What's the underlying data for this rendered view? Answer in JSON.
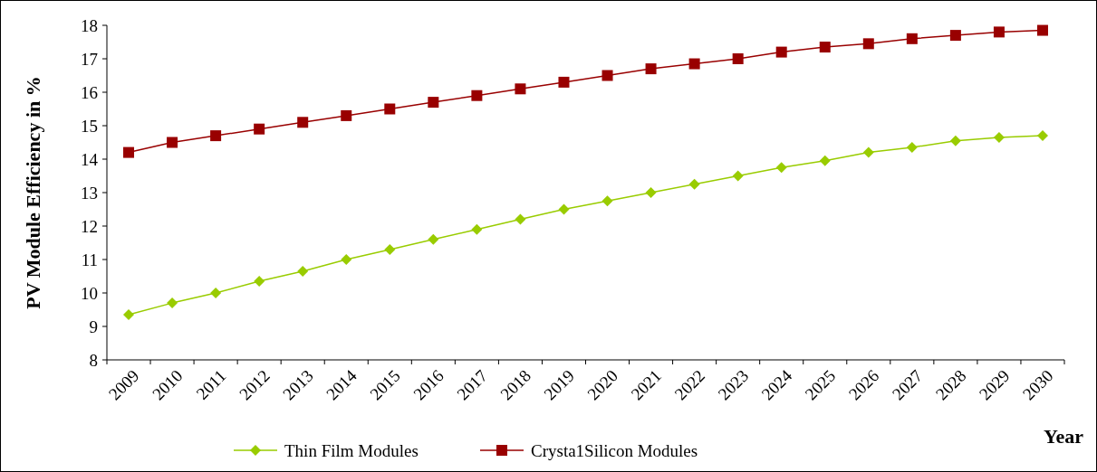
{
  "chart_data": {
    "type": "line",
    "xlabel": "Year",
    "ylabel": "PV Module Efficiency in %",
    "categories": [
      "2009",
      "2010",
      "2011",
      "2012",
      "2013",
      "2014",
      "2015",
      "2016",
      "2017",
      "2018",
      "2019",
      "2020",
      "2021",
      "2022",
      "2023",
      "2024",
      "2025",
      "2026",
      "2027",
      "2028",
      "2029",
      "2030"
    ],
    "series": [
      {
        "name": "Thin Film Modules",
        "color": "#99cc00",
        "marker": "diamond",
        "values": [
          9.35,
          9.7,
          10.0,
          10.35,
          10.65,
          11.0,
          11.3,
          11.6,
          11.9,
          12.2,
          12.5,
          12.75,
          13.0,
          13.25,
          13.5,
          13.75,
          13.95,
          14.2,
          14.35,
          14.55,
          14.65,
          14.7
        ]
      },
      {
        "name": "Crysta1Silicon Modules",
        "color": "#990000",
        "marker": "square",
        "values": [
          14.2,
          14.5,
          14.7,
          14.9,
          15.1,
          15.3,
          15.5,
          15.7,
          15.9,
          16.1,
          16.3,
          16.5,
          16.7,
          16.85,
          17.0,
          17.2,
          17.35,
          17.45,
          17.6,
          17.7,
          17.8,
          17.85
        ]
      }
    ],
    "ylim": [
      8,
      18
    ],
    "yticks": [
      8,
      9,
      10,
      11,
      12,
      13,
      14,
      15,
      16,
      17,
      18
    ],
    "grid": false,
    "legend": "bottom",
    "line_style": "solid"
  }
}
